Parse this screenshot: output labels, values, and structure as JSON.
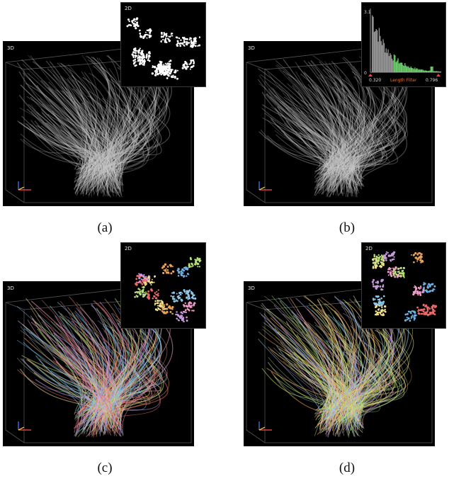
{
  "panels": [
    {
      "id": "a",
      "caption": "(a)",
      "view_label": "3D",
      "inset_label": "2D",
      "coloring": "gray"
    },
    {
      "id": "b",
      "caption": "(b)",
      "view_label": "3D",
      "inset_type": "histogram",
      "coloring": "gray",
      "histogram": {
        "ymax_label": "3.1",
        "ymin_label": "0",
        "xmin_label": "0.320",
        "xmax_label": "0.796",
        "filter_label": "Length Filter"
      }
    },
    {
      "id": "c",
      "caption": "(c)",
      "view_label": "3D",
      "inset_label": "2D",
      "coloring": "clustered"
    },
    {
      "id": "d",
      "caption": "(d)",
      "view_label": "3D",
      "inset_label": "2D",
      "coloring": "clustered"
    }
  ],
  "colors": {
    "background": "#000000",
    "fiber_gray": "#c8c8c8",
    "hist_green": "#6fd36f",
    "hist_gray": "#9a9a9a",
    "filter_text": "#e07a3a",
    "clusters": [
      "#e8a45a",
      "#8ec7e8",
      "#e86a6a",
      "#b7e07a",
      "#c79ae0",
      "#f2e08c",
      "#6fb0e0",
      "#f0a0c8"
    ]
  }
}
